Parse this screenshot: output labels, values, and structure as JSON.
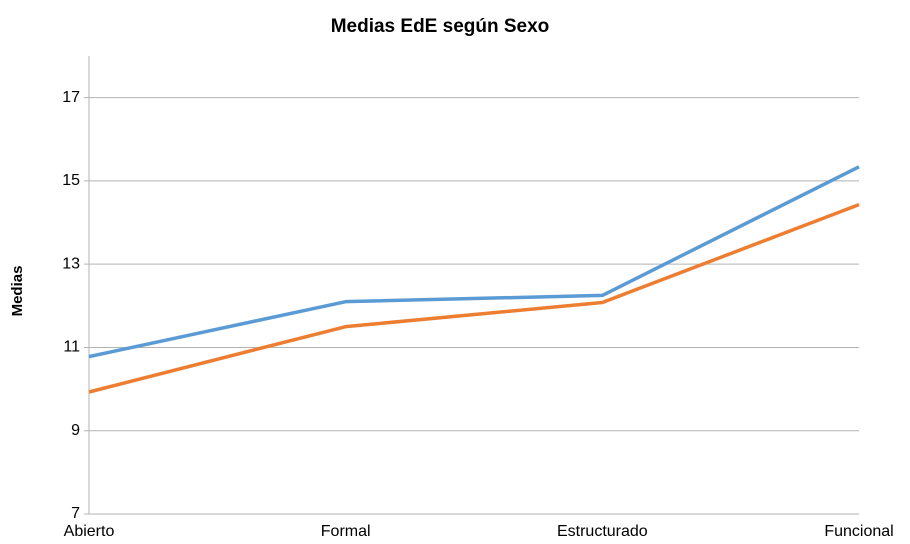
{
  "chart_data": {
    "type": "line",
    "title": "Medias EdE según Sexo",
    "y_label": "Medias",
    "categories": [
      "Abierto",
      "Formal",
      "Estructurado",
      "Funcional"
    ],
    "series": [
      {
        "color": "#5b9bd5",
        "values": [
          10.78,
          12.1,
          12.25,
          15.34
        ]
      },
      {
        "color": "#ed7d31",
        "values": [
          9.93,
          11.5,
          12.08,
          14.43
        ]
      }
    ],
    "ylim": [
      7,
      18
    ],
    "yticks": [
      7,
      9,
      11,
      13,
      15,
      17
    ],
    "grid": true
  }
}
